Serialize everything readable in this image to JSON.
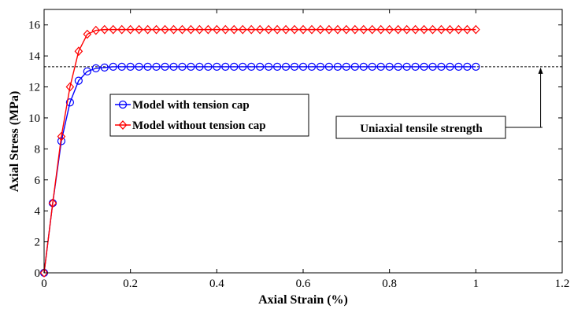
{
  "chart_data": {
    "type": "line",
    "title": "",
    "xlabel": "Axial Strain (%)",
    "ylabel": "Axial Stress (MPa)",
    "xlim": [
      0,
      1.2
    ],
    "ylim": [
      0,
      17
    ],
    "xticks": [
      0,
      0.2,
      0.4,
      0.6,
      0.8,
      1,
      1.2
    ],
    "xtick_labels": [
      "0",
      "0.2",
      "0.4",
      "0.6",
      "0.8",
      "1",
      "1.2"
    ],
    "yticks": [
      0,
      2,
      4,
      6,
      8,
      10,
      12,
      14,
      16
    ],
    "ytick_labels": [
      "0",
      "2",
      "4",
      "6",
      "8",
      "10",
      "12",
      "14",
      "16"
    ],
    "grid": false,
    "legend_position": "center-left",
    "series": [
      {
        "name": "Model with tension cap",
        "color": "#0000ff",
        "marker": "circle",
        "x": [
          0,
          0.02,
          0.04,
          0.06,
          0.08,
          0.1,
          0.12,
          0.14,
          0.16,
          0.18,
          0.2,
          0.22,
          0.24,
          0.26,
          0.28,
          0.3,
          0.32,
          0.34,
          0.36,
          0.38,
          0.4,
          0.42,
          0.44,
          0.46,
          0.48,
          0.5,
          0.52,
          0.54,
          0.56,
          0.58,
          0.6,
          0.62,
          0.64,
          0.66,
          0.68,
          0.7,
          0.72,
          0.74,
          0.76,
          0.78,
          0.8,
          0.82,
          0.84,
          0.86,
          0.88,
          0.9,
          0.92,
          0.94,
          0.96,
          0.98,
          1.0
        ],
        "y": [
          0,
          4.5,
          8.5,
          11.0,
          12.4,
          13.0,
          13.2,
          13.25,
          13.3,
          13.3,
          13.3,
          13.3,
          13.3,
          13.3,
          13.3,
          13.3,
          13.3,
          13.3,
          13.3,
          13.3,
          13.3,
          13.3,
          13.3,
          13.3,
          13.3,
          13.3,
          13.3,
          13.3,
          13.3,
          13.3,
          13.3,
          13.3,
          13.3,
          13.3,
          13.3,
          13.3,
          13.3,
          13.3,
          13.3,
          13.3,
          13.3,
          13.3,
          13.3,
          13.3,
          13.3,
          13.3,
          13.3,
          13.3,
          13.3,
          13.3,
          13.3
        ]
      },
      {
        "name": "Model without tension cap",
        "color": "#ff0000",
        "marker": "diamond",
        "x": [
          0,
          0.02,
          0.04,
          0.06,
          0.08,
          0.1,
          0.12,
          0.14,
          0.16,
          0.18,
          0.2,
          0.22,
          0.24,
          0.26,
          0.28,
          0.3,
          0.32,
          0.34,
          0.36,
          0.38,
          0.4,
          0.42,
          0.44,
          0.46,
          0.48,
          0.5,
          0.52,
          0.54,
          0.56,
          0.58,
          0.6,
          0.62,
          0.64,
          0.66,
          0.68,
          0.7,
          0.72,
          0.74,
          0.76,
          0.78,
          0.8,
          0.82,
          0.84,
          0.86,
          0.88,
          0.9,
          0.92,
          0.94,
          0.96,
          0.98,
          1.0
        ],
        "y": [
          0,
          4.5,
          8.8,
          12.0,
          14.3,
          15.4,
          15.65,
          15.7,
          15.7,
          15.7,
          15.7,
          15.7,
          15.7,
          15.7,
          15.7,
          15.7,
          15.7,
          15.7,
          15.7,
          15.7,
          15.7,
          15.7,
          15.7,
          15.7,
          15.7,
          15.7,
          15.7,
          15.7,
          15.7,
          15.7,
          15.7,
          15.7,
          15.7,
          15.7,
          15.7,
          15.7,
          15.7,
          15.7,
          15.7,
          15.7,
          15.7,
          15.7,
          15.7,
          15.7,
          15.7,
          15.7,
          15.7,
          15.7,
          15.7,
          15.7,
          15.7
        ]
      }
    ],
    "reference_line": {
      "y": 13.3,
      "style": "dashed",
      "color": "#000000"
    },
    "annotation": {
      "text": "Uniaxial tensile strength",
      "arrow_x": 1.15,
      "arrow_to_y": 13.3
    }
  }
}
